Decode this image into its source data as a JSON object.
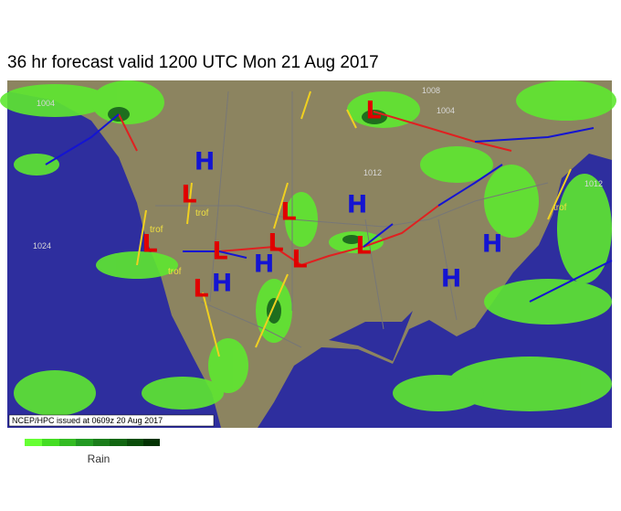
{
  "header": {
    "title": "36 hr forecast valid 1200 UTC Mon 21 Aug 2017"
  },
  "map": {
    "centers": [
      {
        "label": "L"
      },
      {
        "label": "L"
      },
      {
        "label": "L"
      },
      {
        "label": "L"
      },
      {
        "label": "L"
      },
      {
        "label": "L"
      },
      {
        "label": "L"
      },
      {
        "label": "L"
      },
      {
        "label": "L"
      },
      {
        "label": "H"
      },
      {
        "label": "H"
      },
      {
        "label": "H"
      },
      {
        "label": "H"
      },
      {
        "label": "H"
      },
      {
        "label": "H"
      }
    ],
    "isobar_labels": [
      "1004",
      "1008",
      "1012",
      "1024",
      "1012",
      "1004"
    ],
    "trough_labels": [
      "trof",
      "trof",
      "trof",
      "trof"
    ],
    "credit": "NCEP/HPC issued at 0609z  20 Aug 2017"
  },
  "legend": {
    "label": "Rain"
  }
}
